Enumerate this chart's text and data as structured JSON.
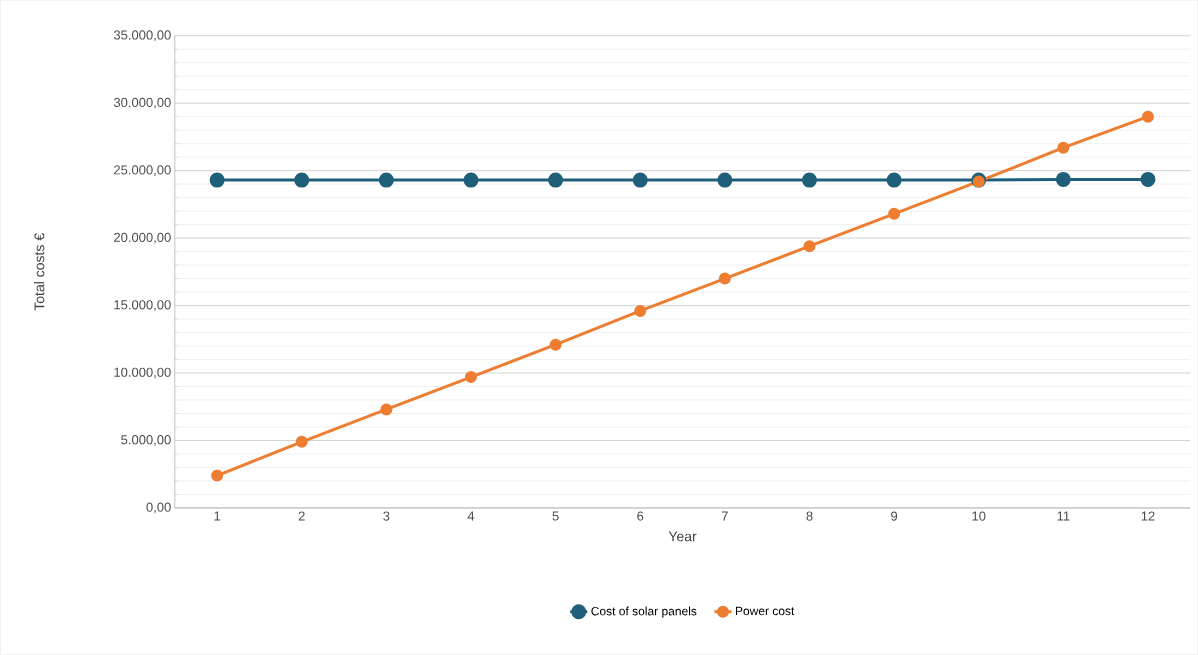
{
  "chart_data": {
    "type": "line",
    "xlabel": "Year",
    "ylabel": "Total costs €",
    "categories": [
      "1",
      "2",
      "3",
      "4",
      "5",
      "6",
      "7",
      "8",
      "9",
      "10",
      "11",
      "12"
    ],
    "series": [
      {
        "name": "Cost of solar panels",
        "color": "#1f5f7a",
        "values": [
          24300,
          24300,
          24300,
          24300,
          24300,
          24300,
          24300,
          24300,
          24300,
          24300,
          24350,
          24350
        ]
      },
      {
        "name": "Power cost",
        "color": "#ed7d31",
        "values": [
          2400,
          4900,
          7300,
          9700,
          12100,
          14600,
          17000,
          19400,
          21800,
          24200,
          26700,
          29000
        ]
      }
    ],
    "ylim": [
      0,
      35000
    ],
    "yticks": [
      {
        "value": 0,
        "label": "0,00"
      },
      {
        "value": 5000,
        "label": "5.000,00"
      },
      {
        "value": 10000,
        "label": "10.000,00"
      },
      {
        "value": 15000,
        "label": "15.000,00"
      },
      {
        "value": 20000,
        "label": "20.000,00"
      },
      {
        "value": 25000,
        "label": "25.000,00"
      },
      {
        "value": 30000,
        "label": "30.000,00"
      },
      {
        "value": 35000,
        "label": "35.000,00"
      }
    ],
    "grid": "y",
    "legend": "bottom",
    "marker": "circle",
    "line_style": "solid"
  }
}
